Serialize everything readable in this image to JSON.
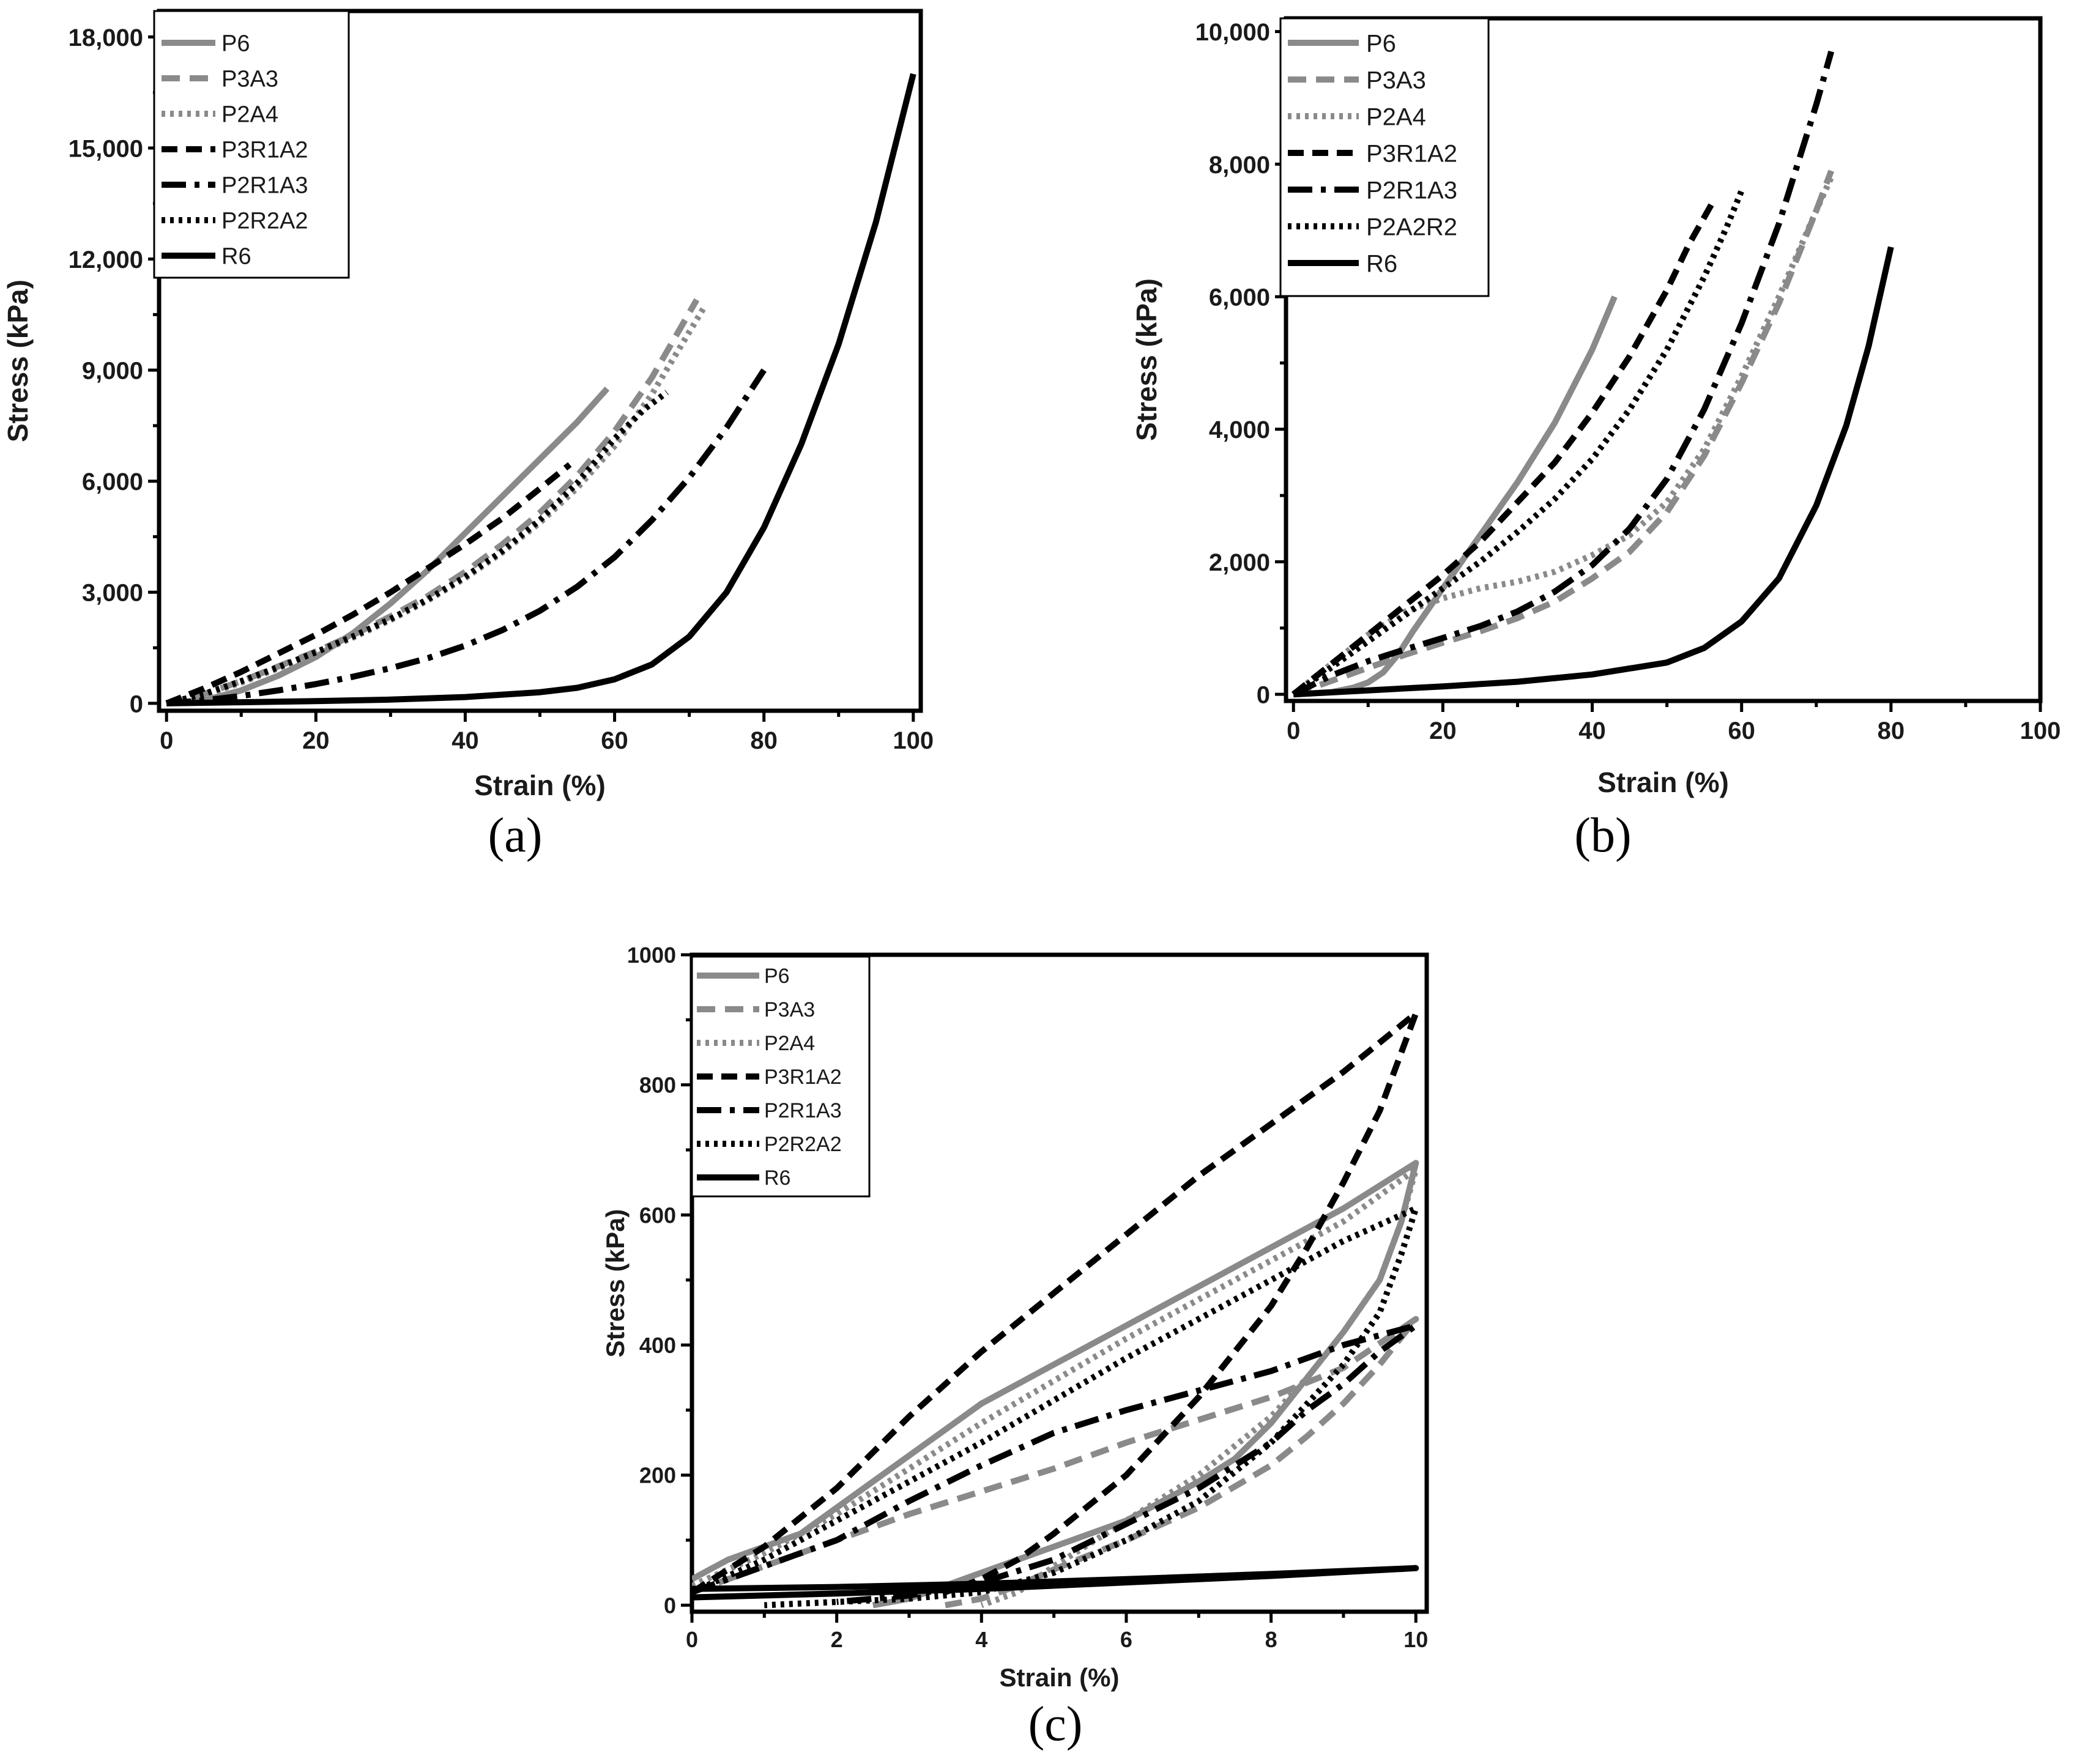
{
  "styles": {
    "P6": {
      "color": "#8a8a8a",
      "width": 10,
      "dash": ""
    },
    "P3A3": {
      "color": "#8a8a8a",
      "width": 10,
      "dash": "30 16"
    },
    "P2A4": {
      "color": "#8a8a8a",
      "width": 10,
      "dash": "6 8"
    },
    "P3R1A2": {
      "color": "#000000",
      "width": 10,
      "dash": "26 14"
    },
    "P2R1A3": {
      "color": "#000000",
      "width": 10,
      "dash": "40 14 8 14"
    },
    "P2R2A2": {
      "color": "#000000",
      "width": 10,
      "dash": "6 8"
    },
    "P2A2R2": {
      "color": "#000000",
      "width": 10,
      "dash": "6 8"
    },
    "R6": {
      "color": "#000000",
      "width": 10,
      "dash": ""
    }
  },
  "chart_data": [
    {
      "panel": "(a)",
      "type": "line",
      "xlabel": "Strain (%)",
      "ylabel": "Stress (kPa)",
      "xlim": [
        -1,
        101
      ],
      "ylim": [
        -200,
        18700
      ],
      "xticks": [
        0,
        20,
        40,
        60,
        80,
        100
      ],
      "xtick_labels": [
        "0",
        "20",
        "40",
        "60",
        "80",
        "100"
      ],
      "yticks": [
        0,
        3000,
        6000,
        9000,
        12000,
        15000,
        18000
      ],
      "ytick_labels": [
        "0",
        "3,000",
        "6,000",
        "9,000",
        "12,000",
        "15,000",
        "18,000"
      ],
      "legend": [
        "P6",
        "P3A3",
        "P2A4",
        "P3R1A2",
        "P2R1A3",
        "P2R2A2",
        "R6"
      ],
      "legend_position": "top-left",
      "series": [
        {
          "name": "P6",
          "x": [
            0,
            5,
            10,
            15,
            20,
            25,
            30,
            35,
            40,
            45,
            50,
            55,
            59
          ],
          "y": [
            0,
            80,
            350,
            750,
            1250,
            1900,
            2700,
            3600,
            4600,
            5600,
            6600,
            7600,
            8500
          ]
        },
        {
          "name": "P3A3",
          "x": [
            0,
            5,
            10,
            15,
            20,
            25,
            30,
            35,
            40,
            45,
            50,
            55,
            60,
            65,
            71
          ],
          "y": [
            0,
            250,
            600,
            1000,
            1400,
            1850,
            2350,
            2900,
            3550,
            4300,
            5150,
            6150,
            7350,
            8800,
            10900
          ]
        },
        {
          "name": "P2A4",
          "x": [
            0,
            5,
            10,
            15,
            20,
            25,
            30,
            35,
            40,
            45,
            50,
            55,
            60,
            65,
            72
          ],
          "y": [
            0,
            220,
            560,
            950,
            1350,
            1780,
            2250,
            2780,
            3380,
            4080,
            4880,
            5820,
            6950,
            8350,
            10700
          ]
        },
        {
          "name": "P3R1A2",
          "x": [
            0,
            5,
            10,
            15,
            20,
            25,
            30,
            35,
            40,
            45,
            50,
            54
          ],
          "y": [
            0,
            400,
            850,
            1350,
            1850,
            2400,
            3000,
            3650,
            4300,
            5000,
            5800,
            6450
          ]
        },
        {
          "name": "P2R1A3",
          "x": [
            0,
            5,
            10,
            15,
            20,
            25,
            30,
            35,
            40,
            45,
            50,
            55,
            60,
            65,
            70,
            75,
            80
          ],
          "y": [
            0,
            80,
            200,
            350,
            520,
            720,
            950,
            1220,
            1560,
            1980,
            2500,
            3150,
            3950,
            4950,
            6100,
            7450,
            9000
          ]
        },
        {
          "name": "P2R2A2",
          "x": [
            0,
            5,
            10,
            15,
            20,
            25,
            30,
            35,
            40,
            45,
            50,
            55,
            60,
            64,
            67
          ],
          "y": [
            0,
            250,
            600,
            980,
            1380,
            1810,
            2280,
            2810,
            3420,
            4120,
            4950,
            5950,
            7150,
            7950,
            8400
          ]
        },
        {
          "name": "R6",
          "x": [
            0,
            10,
            20,
            30,
            40,
            50,
            55,
            60,
            65,
            70,
            75,
            80,
            85,
            90,
            95,
            100
          ],
          "y": [
            0,
            30,
            60,
            100,
            170,
            300,
            420,
            650,
            1050,
            1800,
            3000,
            4750,
            7000,
            9700,
            13000,
            17000
          ]
        }
      ]
    },
    {
      "panel": "(b)",
      "type": "line",
      "xlabel": "Strain (%)",
      "ylabel": "Stress (kPa)",
      "xlim": [
        -1,
        100
      ],
      "ylim": [
        -100,
        10200
      ],
      "xticks": [
        0,
        20,
        40,
        60,
        80,
        100
      ],
      "xtick_labels": [
        "0",
        "20",
        "40",
        "60",
        "80",
        "100"
      ],
      "yticks": [
        0,
        2000,
        4000,
        6000,
        8000,
        10000
      ],
      "ytick_labels": [
        "0",
        "2,000",
        "4,000",
        "6,000",
        "8,000",
        "10,000"
      ],
      "legend": [
        "P6",
        "P3A3",
        "P2A4",
        "P3R1A2",
        "P2R1A3",
        "P2A2R2",
        "R6"
      ],
      "legend_position": "top-left",
      "series": [
        {
          "name": "P6",
          "x": [
            0,
            5,
            8,
            10,
            12,
            14,
            16,
            20,
            25,
            30,
            35,
            40,
            43
          ],
          "y": [
            0,
            30,
            100,
            180,
            330,
            600,
            950,
            1600,
            2400,
            3200,
            4100,
            5200,
            6000
          ]
        },
        {
          "name": "P3A3",
          "x": [
            0,
            5,
            10,
            15,
            20,
            25,
            30,
            35,
            40,
            45,
            50,
            55,
            60,
            65,
            70,
            72
          ],
          "y": [
            0,
            200,
            400,
            600,
            780,
            950,
            1150,
            1400,
            1750,
            2150,
            2750,
            3600,
            4700,
            5900,
            7300,
            7900
          ]
        },
        {
          "name": "P2A4",
          "x": [
            0,
            5,
            10,
            15,
            20,
            25,
            30,
            35,
            40,
            45,
            50,
            55,
            60,
            65,
            70,
            72
          ],
          "y": [
            0,
            450,
            900,
            1250,
            1450,
            1600,
            1700,
            1850,
            2100,
            2400,
            2900,
            3700,
            4800,
            6000,
            7300,
            7800
          ]
        },
        {
          "name": "P3R1A2",
          "x": [
            0,
            5,
            10,
            15,
            20,
            25,
            30,
            35,
            40,
            45,
            50,
            53,
            56
          ],
          "y": [
            0,
            450,
            900,
            1350,
            1800,
            2300,
            2900,
            3500,
            4250,
            5100,
            6100,
            6800,
            7400
          ]
        },
        {
          "name": "P2R1A3",
          "x": [
            0,
            5,
            10,
            15,
            20,
            25,
            30,
            35,
            40,
            45,
            50,
            55,
            60,
            65,
            70,
            72
          ],
          "y": [
            0,
            280,
            500,
            680,
            850,
            1030,
            1250,
            1550,
            1950,
            2500,
            3250,
            4300,
            5600,
            7100,
            8900,
            9700
          ]
        },
        {
          "name": "P2A2R2",
          "x": [
            0,
            5,
            10,
            15,
            20,
            25,
            30,
            35,
            40,
            45,
            50,
            55,
            58,
            60
          ],
          "y": [
            0,
            400,
            800,
            1200,
            1600,
            2000,
            2450,
            2950,
            3550,
            4300,
            5200,
            6300,
            7050,
            7600
          ]
        },
        {
          "name": "R6",
          "x": [
            0,
            10,
            20,
            30,
            40,
            50,
            55,
            60,
            65,
            70,
            74,
            77,
            80
          ],
          "y": [
            0,
            60,
            120,
            190,
            300,
            480,
            700,
            1100,
            1750,
            2850,
            4050,
            5250,
            6750
          ]
        }
      ]
    },
    {
      "panel": "(c)",
      "type": "line",
      "xlabel": "Strain (%)",
      "ylabel": "Stress (kPa)",
      "xlim": [
        0,
        10.15
      ],
      "ylim": [
        -10,
        1000
      ],
      "xticks": [
        0,
        2,
        4,
        6,
        8,
        10
      ],
      "xtick_labels": [
        "0",
        "2",
        "4",
        "6",
        "8",
        "10"
      ],
      "yticks": [
        0,
        200,
        400,
        600,
        800,
        1000
      ],
      "ytick_labels": [
        "0",
        "200",
        "400",
        "600",
        "800",
        "1000"
      ],
      "legend": [
        "P6",
        "P3A3",
        "P2A4",
        "P3R1A2",
        "P2R1A3",
        "P2R2A2",
        "R6"
      ],
      "legend_position": "top-left",
      "series": [
        {
          "name": "P6",
          "x": [
            0,
            0.5,
            1.5,
            2.5,
            3.5,
            4.0,
            5.0,
            6.0,
            7.0,
            8.0,
            9.0,
            10.0,
            9.8,
            9.5,
            9.0,
            8.5,
            8.0,
            7.5,
            7.0,
            6.0,
            5.0,
            4.0,
            3.5,
            3.0,
            2.5
          ],
          "y": [
            40,
            70,
            110,
            190,
            270,
            310,
            370,
            430,
            490,
            550,
            610,
            680,
            590,
            500,
            420,
            350,
            280,
            225,
            190,
            130,
            90,
            50,
            30,
            10,
            0
          ]
        },
        {
          "name": "P3A3",
          "x": [
            0,
            1,
            2,
            3,
            4,
            5,
            6,
            7,
            8,
            9,
            10,
            9.5,
            9,
            8.5,
            8,
            7,
            6,
            5,
            4.5,
            4,
            3.5
          ],
          "y": [
            20,
            60,
            100,
            140,
            175,
            210,
            250,
            285,
            320,
            365,
            440,
            370,
            310,
            260,
            215,
            150,
            100,
            55,
            30,
            10,
            0
          ]
        },
        {
          "name": "P2A4",
          "x": [
            0,
            1,
            2,
            3,
            4,
            5,
            6,
            7,
            8,
            9,
            10,
            9.8,
            9.5,
            9,
            8.5,
            8,
            7,
            6,
            5,
            4.5,
            4
          ],
          "y": [
            30,
            80,
            140,
            210,
            280,
            345,
            410,
            470,
            530,
            590,
            670,
            590,
            500,
            420,
            350,
            290,
            200,
            130,
            60,
            20,
            0
          ]
        },
        {
          "name": "P3R1A2",
          "x": [
            0,
            1,
            2,
            3,
            4,
            5,
            6,
            7,
            8,
            9,
            10,
            9.8,
            9.5,
            9,
            8.5,
            8,
            7,
            6,
            5,
            4.5,
            4,
            3.5
          ],
          "y": [
            20,
            90,
            180,
            290,
            390,
            480,
            570,
            660,
            740,
            820,
            910,
            850,
            760,
            650,
            550,
            460,
            320,
            200,
            110,
            70,
            40,
            20
          ]
        },
        {
          "name": "P2R1A3",
          "x": [
            0,
            1,
            2,
            3,
            4,
            5,
            6,
            7,
            8,
            9,
            10,
            9.5,
            9,
            8.5,
            8,
            7,
            6,
            5,
            4,
            3,
            2
          ],
          "y": [
            20,
            60,
            100,
            160,
            215,
            265,
            300,
            330,
            360,
            400,
            430,
            390,
            340,
            300,
            250,
            180,
            125,
            70,
            35,
            15,
            5
          ]
        },
        {
          "name": "P2R2A2",
          "x": [
            0,
            1,
            2,
            3,
            4,
            5,
            6,
            7,
            8,
            9,
            10,
            9.8,
            9.5,
            9,
            8.5,
            8,
            7,
            6,
            5,
            4,
            3,
            2,
            1
          ],
          "y": [
            20,
            70,
            130,
            190,
            250,
            315,
            380,
            440,
            500,
            560,
            610,
            540,
            450,
            370,
            310,
            250,
            160,
            100,
            50,
            20,
            10,
            5,
            0
          ]
        },
        {
          "name": "R6",
          "x": [
            0,
            2,
            4,
            6,
            8,
            10,
            8,
            6,
            4,
            2,
            0
          ],
          "y": [
            25,
            28,
            33,
            40,
            48,
            57,
            45,
            35,
            25,
            18,
            12
          ]
        }
      ]
    }
  ]
}
